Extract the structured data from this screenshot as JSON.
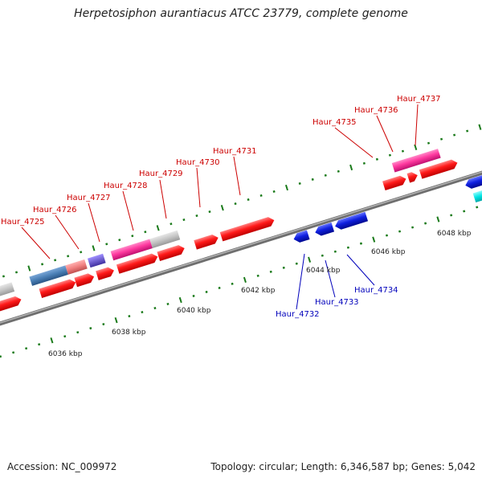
{
  "header": {
    "title": "Herpetosiphon aurantiacus ATCC 23779, complete genome"
  },
  "footer": {
    "accession": "Accession: NC_009972",
    "summary": "Topology: circular; Length: 6,346,587 bp; Genes: 5,042"
  },
  "scale_labels": [
    "6036 kbp",
    "6038 kbp",
    "6040 kbp",
    "6042 kbp",
    "6044 kbp",
    "6046 kbp",
    "6048 kbp"
  ],
  "forward_labels": [
    "Haur_4725",
    "Haur_4726",
    "Haur_4727",
    "Haur_4728",
    "Haur_4729",
    "Haur_4730",
    "Haur_4731",
    "Haur_4735",
    "Haur_4736",
    "Haur_4737"
  ],
  "reverse_labels": [
    "Haur_4732",
    "Haur_4733",
    "Haur_4734"
  ],
  "colors": {
    "backbone": "#8a8a8a",
    "cds_forward": "#ff1a1a",
    "cds_reverse": "#1020e0",
    "pink": "#ff3aa0",
    "gray": "#c4c4c4",
    "steelblue": "#4a7fb5",
    "salmon": "#f08080",
    "violet": "#7060d0",
    "cyan": "#00e5e5",
    "tick": "#1a7a1a",
    "label_forward": "#cc0000",
    "label_reverse": "#0000bb"
  }
}
